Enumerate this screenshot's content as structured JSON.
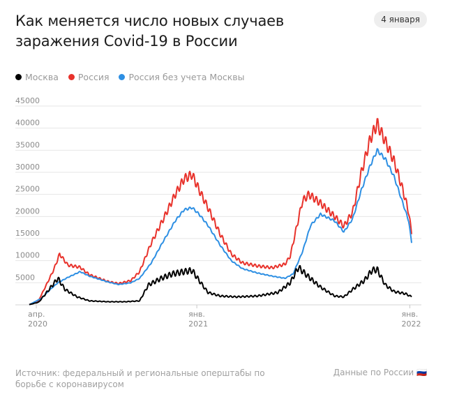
{
  "header": {
    "title": "Как меняется число новых случаев заражения Covid-19 в России",
    "date": "4 января"
  },
  "legend": [
    {
      "label": "Москва",
      "color": "#000000"
    },
    {
      "label": "Россия",
      "color": "#e8322b"
    },
    {
      "label": "Россия без учета Москвы",
      "color": "#2d8fe3"
    }
  ],
  "footer": {
    "source": "Источник: федеральный и региональные оперштабы по борьбе с коронавирусом",
    "link": "Данные по России 🇷🇺"
  },
  "chart_data": {
    "type": "line",
    "yticks": [
      5000,
      10000,
      15000,
      20000,
      25000,
      30000,
      35000,
      40000,
      45000
    ],
    "ylim": [
      0,
      45000
    ],
    "xlim": [
      "2020-03-20",
      "2022-01-04"
    ],
    "xticks": [
      {
        "date": "2020-04-01",
        "label1": "апр.",
        "label2": "2020"
      },
      {
        "date": "2021-01-01",
        "label1": "янв.",
        "label2": "2021"
      },
      {
        "date": "2022-01-01",
        "label1": "янв.",
        "label2": "2022"
      }
    ],
    "series": [
      {
        "name": "Россия",
        "color": "#e8322b",
        "points": [
          [
            "2020-03-20",
            50
          ],
          [
            "2020-04-05",
            1000
          ],
          [
            "2020-04-20",
            5000
          ],
          [
            "2020-05-01",
            8000
          ],
          [
            "2020-05-11",
            11500
          ],
          [
            "2020-05-25",
            9000
          ],
          [
            "2020-06-15",
            8500
          ],
          [
            "2020-07-01",
            6800
          ],
          [
            "2020-08-01",
            5300
          ],
          [
            "2020-08-20",
            4800
          ],
          [
            "2020-09-10",
            5500
          ],
          [
            "2020-09-25",
            7500
          ],
          [
            "2020-10-15",
            14000
          ],
          [
            "2020-11-05",
            19500
          ],
          [
            "2020-11-25",
            25000
          ],
          [
            "2020-12-10",
            28500
          ],
          [
            "2020-12-24",
            29500
          ],
          [
            "2021-01-05",
            26000
          ],
          [
            "2021-01-20",
            22000
          ],
          [
            "2021-02-10",
            16000
          ],
          [
            "2021-03-01",
            11500
          ],
          [
            "2021-03-20",
            9500
          ],
          [
            "2021-04-15",
            8800
          ],
          [
            "2021-05-10",
            8400
          ],
          [
            "2021-06-01",
            9200
          ],
          [
            "2021-06-10",
            11000
          ],
          [
            "2021-06-20",
            17000
          ],
          [
            "2021-07-01",
            23500
          ],
          [
            "2021-07-12",
            25000
          ],
          [
            "2021-08-01",
            23000
          ],
          [
            "2021-08-25",
            20000
          ],
          [
            "2021-09-10",
            17800
          ],
          [
            "2021-09-25",
            21000
          ],
          [
            "2021-10-10",
            30000
          ],
          [
            "2021-10-25",
            37500
          ],
          [
            "2021-11-06",
            41000
          ],
          [
            "2021-11-20",
            37000
          ],
          [
            "2021-12-05",
            32500
          ],
          [
            "2021-12-20",
            26000
          ],
          [
            "2021-12-30",
            21000
          ],
          [
            "2022-01-04",
            16000
          ]
        ]
      },
      {
        "name": "Россия без учета Москвы",
        "color": "#2d8fe3",
        "points": [
          [
            "2020-03-20",
            30
          ],
          [
            "2020-04-10",
            1500
          ],
          [
            "2020-04-25",
            3500
          ],
          [
            "2020-05-08",
            5000
          ],
          [
            "2020-05-25",
            6200
          ],
          [
            "2020-06-15",
            7500
          ],
          [
            "2020-07-01",
            6500
          ],
          [
            "2020-08-01",
            5200
          ],
          [
            "2020-08-20",
            4600
          ],
          [
            "2020-09-10",
            5000
          ],
          [
            "2020-09-25",
            6000
          ],
          [
            "2020-10-15",
            9500
          ],
          [
            "2020-11-05",
            14500
          ],
          [
            "2020-11-25",
            19000
          ],
          [
            "2020-12-10",
            21500
          ],
          [
            "2020-12-24",
            22000
          ],
          [
            "2021-01-05",
            20500
          ],
          [
            "2021-01-20",
            18000
          ],
          [
            "2021-02-10",
            13500
          ],
          [
            "2021-03-01",
            10000
          ],
          [
            "2021-03-20",
            8200
          ],
          [
            "2021-04-15",
            7200
          ],
          [
            "2021-05-10",
            6500
          ],
          [
            "2021-06-01",
            6000
          ],
          [
            "2021-06-15",
            7000
          ],
          [
            "2021-07-01",
            12000
          ],
          [
            "2021-07-15",
            18000
          ],
          [
            "2021-08-01",
            20500
          ],
          [
            "2021-08-25",
            19000
          ],
          [
            "2021-09-10",
            16500
          ],
          [
            "2021-09-25",
            19500
          ],
          [
            "2021-10-10",
            26000
          ],
          [
            "2021-10-25",
            31500
          ],
          [
            "2021-11-06",
            35000
          ],
          [
            "2021-11-20",
            33000
          ],
          [
            "2021-12-05",
            29000
          ],
          [
            "2021-12-20",
            23000
          ],
          [
            "2021-12-30",
            19000
          ],
          [
            "2022-01-04",
            14000
          ]
        ]
      },
      {
        "name": "Москва",
        "color": "#000000",
        "points": [
          [
            "2020-03-20",
            50
          ],
          [
            "2020-04-05",
            600
          ],
          [
            "2020-04-20",
            3000
          ],
          [
            "2020-05-08",
            6000
          ],
          [
            "2020-05-20",
            3500
          ],
          [
            "2020-06-10",
            1800
          ],
          [
            "2020-07-01",
            900
          ],
          [
            "2020-08-01",
            700
          ],
          [
            "2020-09-01",
            700
          ],
          [
            "2020-09-25",
            900
          ],
          [
            "2020-10-10",
            4500
          ],
          [
            "2020-11-01",
            6000
          ],
          [
            "2020-11-20",
            7000
          ],
          [
            "2020-12-10",
            7500
          ],
          [
            "2020-12-24",
            7800
          ],
          [
            "2021-01-05",
            5500
          ],
          [
            "2021-01-20",
            2800
          ],
          [
            "2021-02-10",
            2000
          ],
          [
            "2021-03-10",
            1800
          ],
          [
            "2021-04-15",
            2000
          ],
          [
            "2021-05-20",
            2800
          ],
          [
            "2021-06-10",
            5000
          ],
          [
            "2021-06-24",
            8500
          ],
          [
            "2021-07-10",
            6500
          ],
          [
            "2021-08-01",
            4000
          ],
          [
            "2021-08-25",
            2000
          ],
          [
            "2021-09-10",
            1800
          ],
          [
            "2021-09-25",
            3500
          ],
          [
            "2021-10-15",
            5500
          ],
          [
            "2021-10-28",
            7800
          ],
          [
            "2021-11-06",
            8000
          ],
          [
            "2021-11-20",
            4500
          ],
          [
            "2021-12-05",
            3000
          ],
          [
            "2021-12-25",
            2500
          ],
          [
            "2022-01-04",
            1800
          ]
        ]
      }
    ]
  }
}
